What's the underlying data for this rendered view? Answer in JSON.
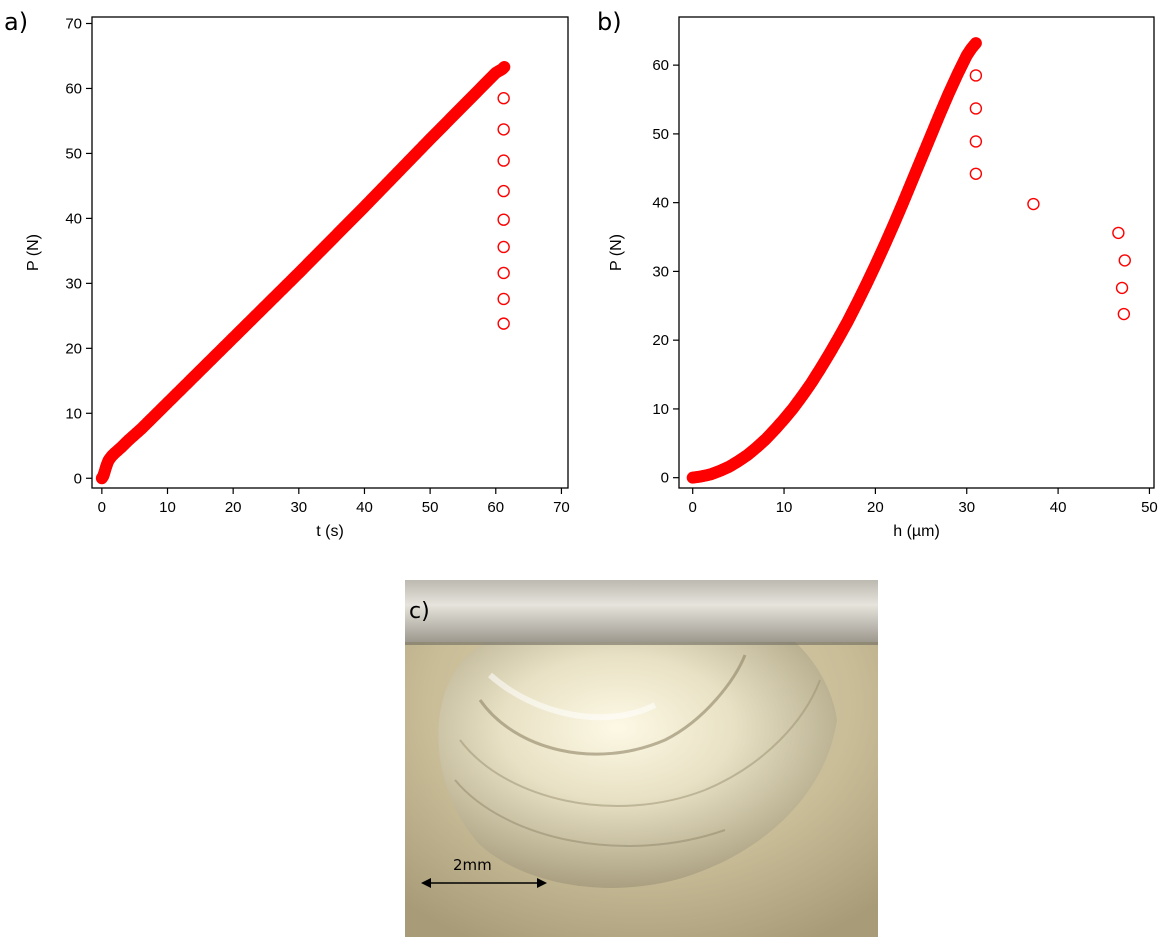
{
  "chart_data": [
    {
      "type": "scatter",
      "panel_label": "a)",
      "xlabel": "t (s)",
      "ylabel": "P (N)",
      "xlim": [
        -1.5,
        71
      ],
      "ylim": [
        -1.5,
        71
      ],
      "xticks": [
        0,
        10,
        20,
        30,
        40,
        50,
        60,
        70
      ],
      "yticks": [
        0,
        10,
        20,
        30,
        40,
        50,
        60,
        70
      ],
      "grid": false,
      "series": [
        {
          "style": "filled",
          "color": "#ff0000",
          "description_curve": "dense loading curve",
          "x": [
            0,
            0.2,
            0.4,
            0.6,
            0.8,
            1.0,
            1.2,
            1.5,
            2,
            3,
            4,
            5,
            6,
            8,
            10,
            15,
            20,
            25,
            30,
            35,
            40,
            45,
            50,
            55,
            60,
            61,
            61.3
          ],
          "y": [
            0,
            0.3,
            0.9,
            1.6,
            2.2,
            2.7,
            3.0,
            3.4,
            3.9,
            4.8,
            5.8,
            6.7,
            7.6,
            9.6,
            11.6,
            16.6,
            21.6,
            26.6,
            31.6,
            36.7,
            41.8,
            47.0,
            52.2,
            57.3,
            62.4,
            63.0,
            63.3
          ]
        },
        {
          "style": "open",
          "color": "#ff0000",
          "x": [
            61.2,
            61.2,
            61.2,
            61.2,
            61.2,
            61.2,
            61.2,
            61.2,
            61.2
          ],
          "y": [
            58.5,
            53.7,
            48.9,
            44.2,
            39.8,
            35.6,
            31.6,
            27.6,
            23.8
          ]
        }
      ]
    },
    {
      "type": "scatter",
      "panel_label": "b)",
      "xlabel": "h (µm)",
      "ylabel": "P (N)",
      "xlim": [
        -1.5,
        50.5
      ],
      "ylim": [
        -1.5,
        67
      ],
      "xticks": [
        0,
        10,
        20,
        30,
        40,
        50
      ],
      "yticks": [
        0,
        10,
        20,
        30,
        40,
        50,
        60
      ],
      "grid": false,
      "series": [
        {
          "style": "filled",
          "color": "#ff0000",
          "x": [
            0,
            1,
            2,
            3,
            4,
            5,
            6,
            7,
            8,
            9,
            10,
            11,
            12,
            13,
            14,
            15,
            16,
            17,
            18,
            19,
            20,
            21,
            22,
            23,
            24,
            25,
            26,
            27,
            28,
            29,
            30,
            30.5,
            31
          ],
          "y": [
            0,
            0.2,
            0.5,
            1.0,
            1.6,
            2.4,
            3.3,
            4.4,
            5.6,
            7.0,
            8.5,
            10.1,
            11.9,
            13.8,
            15.9,
            18.1,
            20.4,
            22.8,
            25.4,
            28.1,
            30.9,
            33.8,
            36.8,
            39.9,
            43.1,
            46.3,
            49.5,
            52.7,
            55.8,
            58.7,
            61.4,
            62.4,
            63.2
          ]
        },
        {
          "style": "open",
          "color": "#ff0000",
          "x": [
            31.0,
            31.0,
            31.0,
            31.0,
            37.3,
            46.6,
            47.3,
            47.0,
            47.2
          ],
          "y": [
            58.5,
            53.7,
            48.9,
            44.2,
            39.8,
            35.6,
            31.6,
            27.6,
            23.8
          ]
        }
      ]
    }
  ],
  "photo": {
    "panel_label": "c)",
    "scale_label": "2mm",
    "background_color": "#c8bc9a",
    "indenter_color": "#d9d6cf",
    "crack_color": "#e8e6da"
  }
}
